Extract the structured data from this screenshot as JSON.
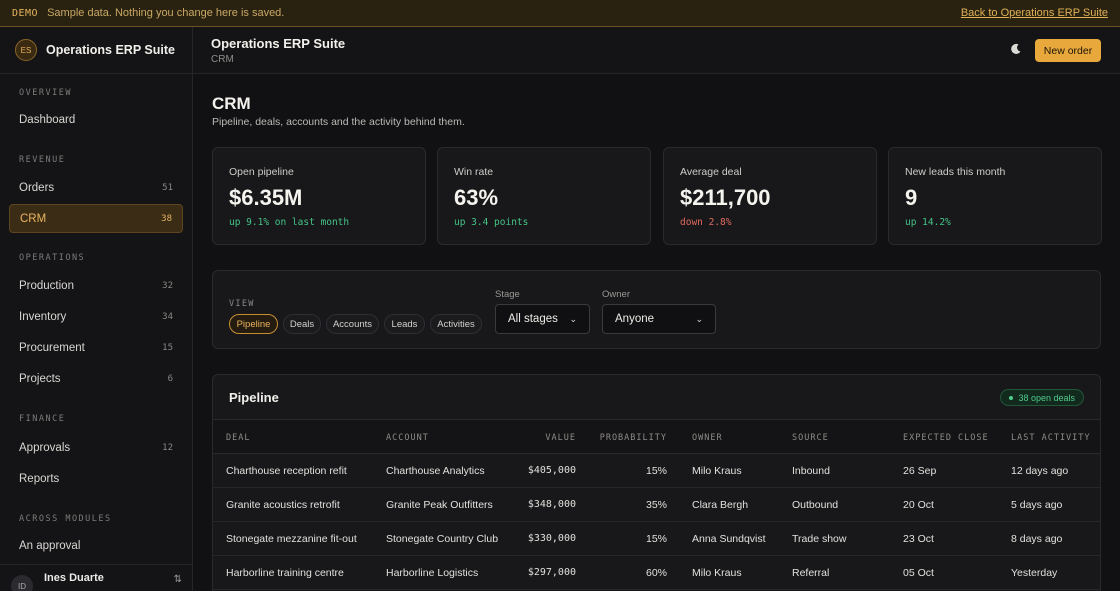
{
  "banner": {
    "tag": "DEMO",
    "message": "Sample data. Nothing you change here is saved.",
    "back_link": "Back to Operations ERP Suite"
  },
  "sidebar": {
    "logo": "ES",
    "brand": "Operations ERP Suite",
    "sections": {
      "overview": "OVERVIEW",
      "revenue": "REVENUE",
      "operations": "OPERATIONS",
      "finance": "FINANCE",
      "across": "ACROSS MODULES"
    },
    "items": {
      "dashboard": {
        "label": "Dashboard"
      },
      "orders": {
        "label": "Orders",
        "count": "51"
      },
      "crm": {
        "label": "CRM",
        "count": "38"
      },
      "production": {
        "label": "Production",
        "count": "32"
      },
      "inventory": {
        "label": "Inventory",
        "count": "34"
      },
      "procurement": {
        "label": "Procurement",
        "count": "15"
      },
      "projects": {
        "label": "Projects",
        "count": "6"
      },
      "approvals": {
        "label": "Approvals",
        "count": "12"
      },
      "reports": {
        "label": "Reports"
      },
      "an_approval": {
        "label": "An approval"
      }
    },
    "user": {
      "initials": "ID",
      "name": "Ines Duarte"
    }
  },
  "header": {
    "title": "Operations ERP Suite",
    "crumb": "CRM",
    "theme_icon": "moon-icon",
    "new_order": "New order"
  },
  "page": {
    "title": "CRM",
    "subtitle": "Pipeline, deals, accounts and the activity behind them."
  },
  "kpis": [
    {
      "label": "Open pipeline",
      "value": "$6.35M",
      "delta": "up 9.1% on last month",
      "trend": "up"
    },
    {
      "label": "Win rate",
      "value": "63%",
      "delta": "up 3.4 points",
      "trend": "up"
    },
    {
      "label": "Average deal",
      "value": "$211,700",
      "delta": "down 2.8%",
      "trend": "down"
    },
    {
      "label": "New leads this month",
      "value": "9",
      "delta": "up 14.2%",
      "trend": "up"
    }
  ],
  "filters": {
    "view_label": "VIEW",
    "views": [
      "Pipeline",
      "Deals",
      "Accounts",
      "Leads",
      "Activities"
    ],
    "active_view": "Pipeline",
    "stage_label": "Stage",
    "stage_value": "All stages",
    "owner_label": "Owner",
    "owner_value": "Anyone"
  },
  "pipeline": {
    "title": "Pipeline",
    "badge": "38 open deals",
    "columns": [
      "DEAL",
      "ACCOUNT",
      "VALUE",
      "PROBABILITY",
      "OWNER",
      "SOURCE",
      "EXPECTED CLOSE",
      "LAST ACTIVITY"
    ],
    "rows": [
      [
        "Charthouse reception refit",
        "Charthouse Analytics",
        "$405,000",
        "15%",
        "Milo Kraus",
        "Inbound",
        "26 Sep",
        "12 days ago"
      ],
      [
        "Granite acoustics retrofit",
        "Granite Peak Outfitters",
        "$348,000",
        "35%",
        "Clara Bergh",
        "Outbound",
        "20 Oct",
        "5 days ago"
      ],
      [
        "Stonegate mezzanine fit-out",
        "Stonegate Country Club",
        "$330,000",
        "15%",
        "Anna Sundqvist",
        "Trade show",
        "23 Oct",
        "8 days ago"
      ],
      [
        "Harborline training centre",
        "Harborline Logistics",
        "$297,000",
        "60%",
        "Milo Kraus",
        "Referral",
        "05 Oct",
        "Yesterday"
      ]
    ]
  },
  "colors": {
    "accent": "#e8a83c",
    "positive": "#45c486",
    "negative": "#e06b5f"
  }
}
